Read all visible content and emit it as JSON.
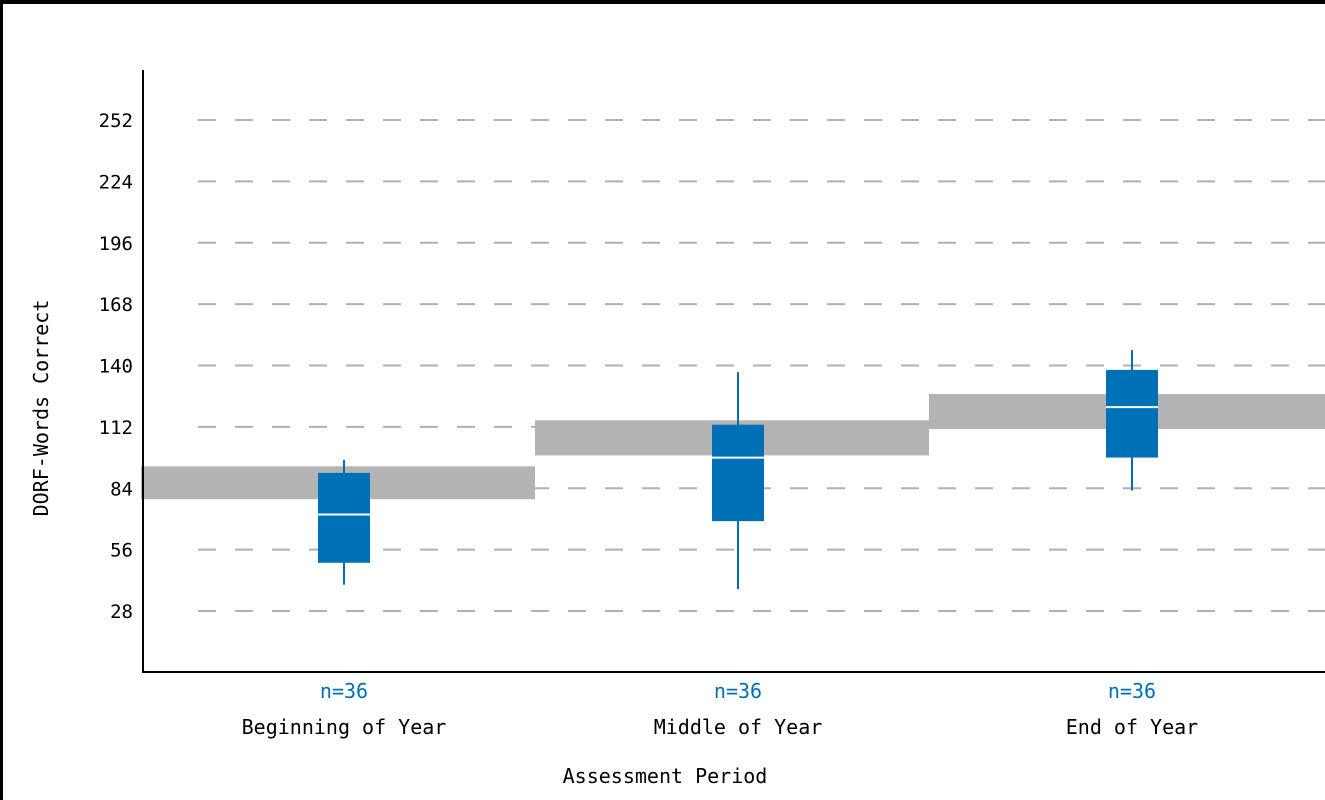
{
  "chart_data": {
    "type": "boxplot",
    "title": "",
    "xlabel": "Assessment Period",
    "ylabel": "DORF-Words Correct",
    "ylim": [
      0,
      280
    ],
    "yticks": [
      28,
      56,
      84,
      112,
      140,
      168,
      196,
      224,
      252
    ],
    "grid": true,
    "categories": [
      "Beginning of Year",
      "Middle of Year",
      "End of Year"
    ],
    "counts": [
      "n=36",
      "n=36",
      "n=36"
    ],
    "boxes": [
      {
        "whisker_low": 40,
        "q1": 50,
        "median": 72,
        "q3": 91,
        "whisker_high": 97
      },
      {
        "whisker_low": 38,
        "q1": 69,
        "median": 98,
        "q3": 113,
        "whisker_high": 137
      },
      {
        "whisker_low": 83,
        "q1": 98,
        "median": 121,
        "q3": 138,
        "whisker_high": 147
      }
    ],
    "benchmark_bands": [
      {
        "low": 79,
        "high": 94
      },
      {
        "low": 99,
        "high": 115
      },
      {
        "low": 111,
        "high": 127
      }
    ],
    "colors": {
      "box": "#0070b6",
      "median": "#ffffff",
      "band": "#b3b3b3",
      "count_text": "#0070b6",
      "grid": "#b0b0b0",
      "axis": "#000000"
    }
  }
}
